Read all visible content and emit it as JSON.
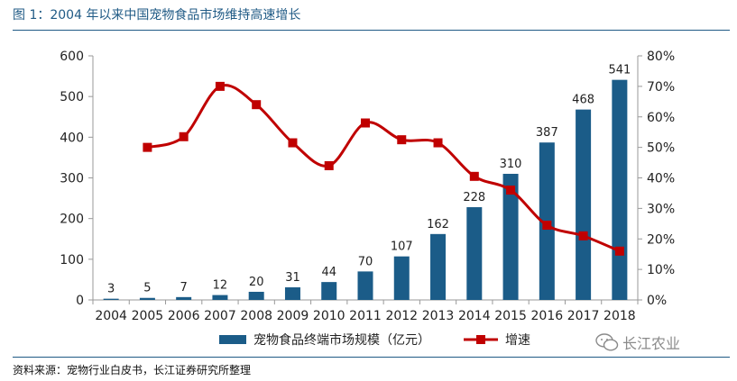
{
  "figure": {
    "title": "图 1：2004 年以来中国宠物食品市场维持高速增长",
    "source": "资料来源：宠物行业白皮书，长江证券研究所整理",
    "watermark": "长江农业"
  },
  "colors": {
    "bar": "#1b5c88",
    "line": "#c00000",
    "title": "#1f5a85",
    "axis": "#999999"
  },
  "chart_data": {
    "type": "bar+line",
    "categories": [
      "2004",
      "2005",
      "2006",
      "2007",
      "2008",
      "2009",
      "2010",
      "2011",
      "2012",
      "2013",
      "2014",
      "2015",
      "2016",
      "2017",
      "2018"
    ],
    "series": [
      {
        "name": "宠物食品终端市场规模（亿元）",
        "type": "bar",
        "axis": "left",
        "values": [
          3,
          5,
          7,
          12,
          20,
          31,
          44,
          70,
          107,
          162,
          228,
          310,
          387,
          468,
          541
        ],
        "labels": [
          "3",
          "5",
          "7",
          "12",
          "20",
          "31",
          "44",
          "70",
          "107",
          "162",
          "228",
          "310",
          "387",
          "468",
          "541"
        ]
      },
      {
        "name": "增速",
        "type": "line",
        "axis": "right",
        "values": [
          null,
          50,
          53.5,
          70,
          64,
          51.5,
          44,
          58,
          52.5,
          51.5,
          40.5,
          36,
          24.5,
          21,
          16
        ]
      }
    ],
    "yleft": {
      "min": 0,
      "max": 600,
      "ticks": [
        "0",
        "100",
        "200",
        "300",
        "400",
        "500",
        "600"
      ]
    },
    "yright": {
      "min": 0,
      "max": 80,
      "ticks": [
        "0%",
        "10%",
        "20%",
        "30%",
        "40%",
        "50%",
        "60%",
        "70%",
        "80%"
      ]
    },
    "legend_position": "bottom"
  }
}
